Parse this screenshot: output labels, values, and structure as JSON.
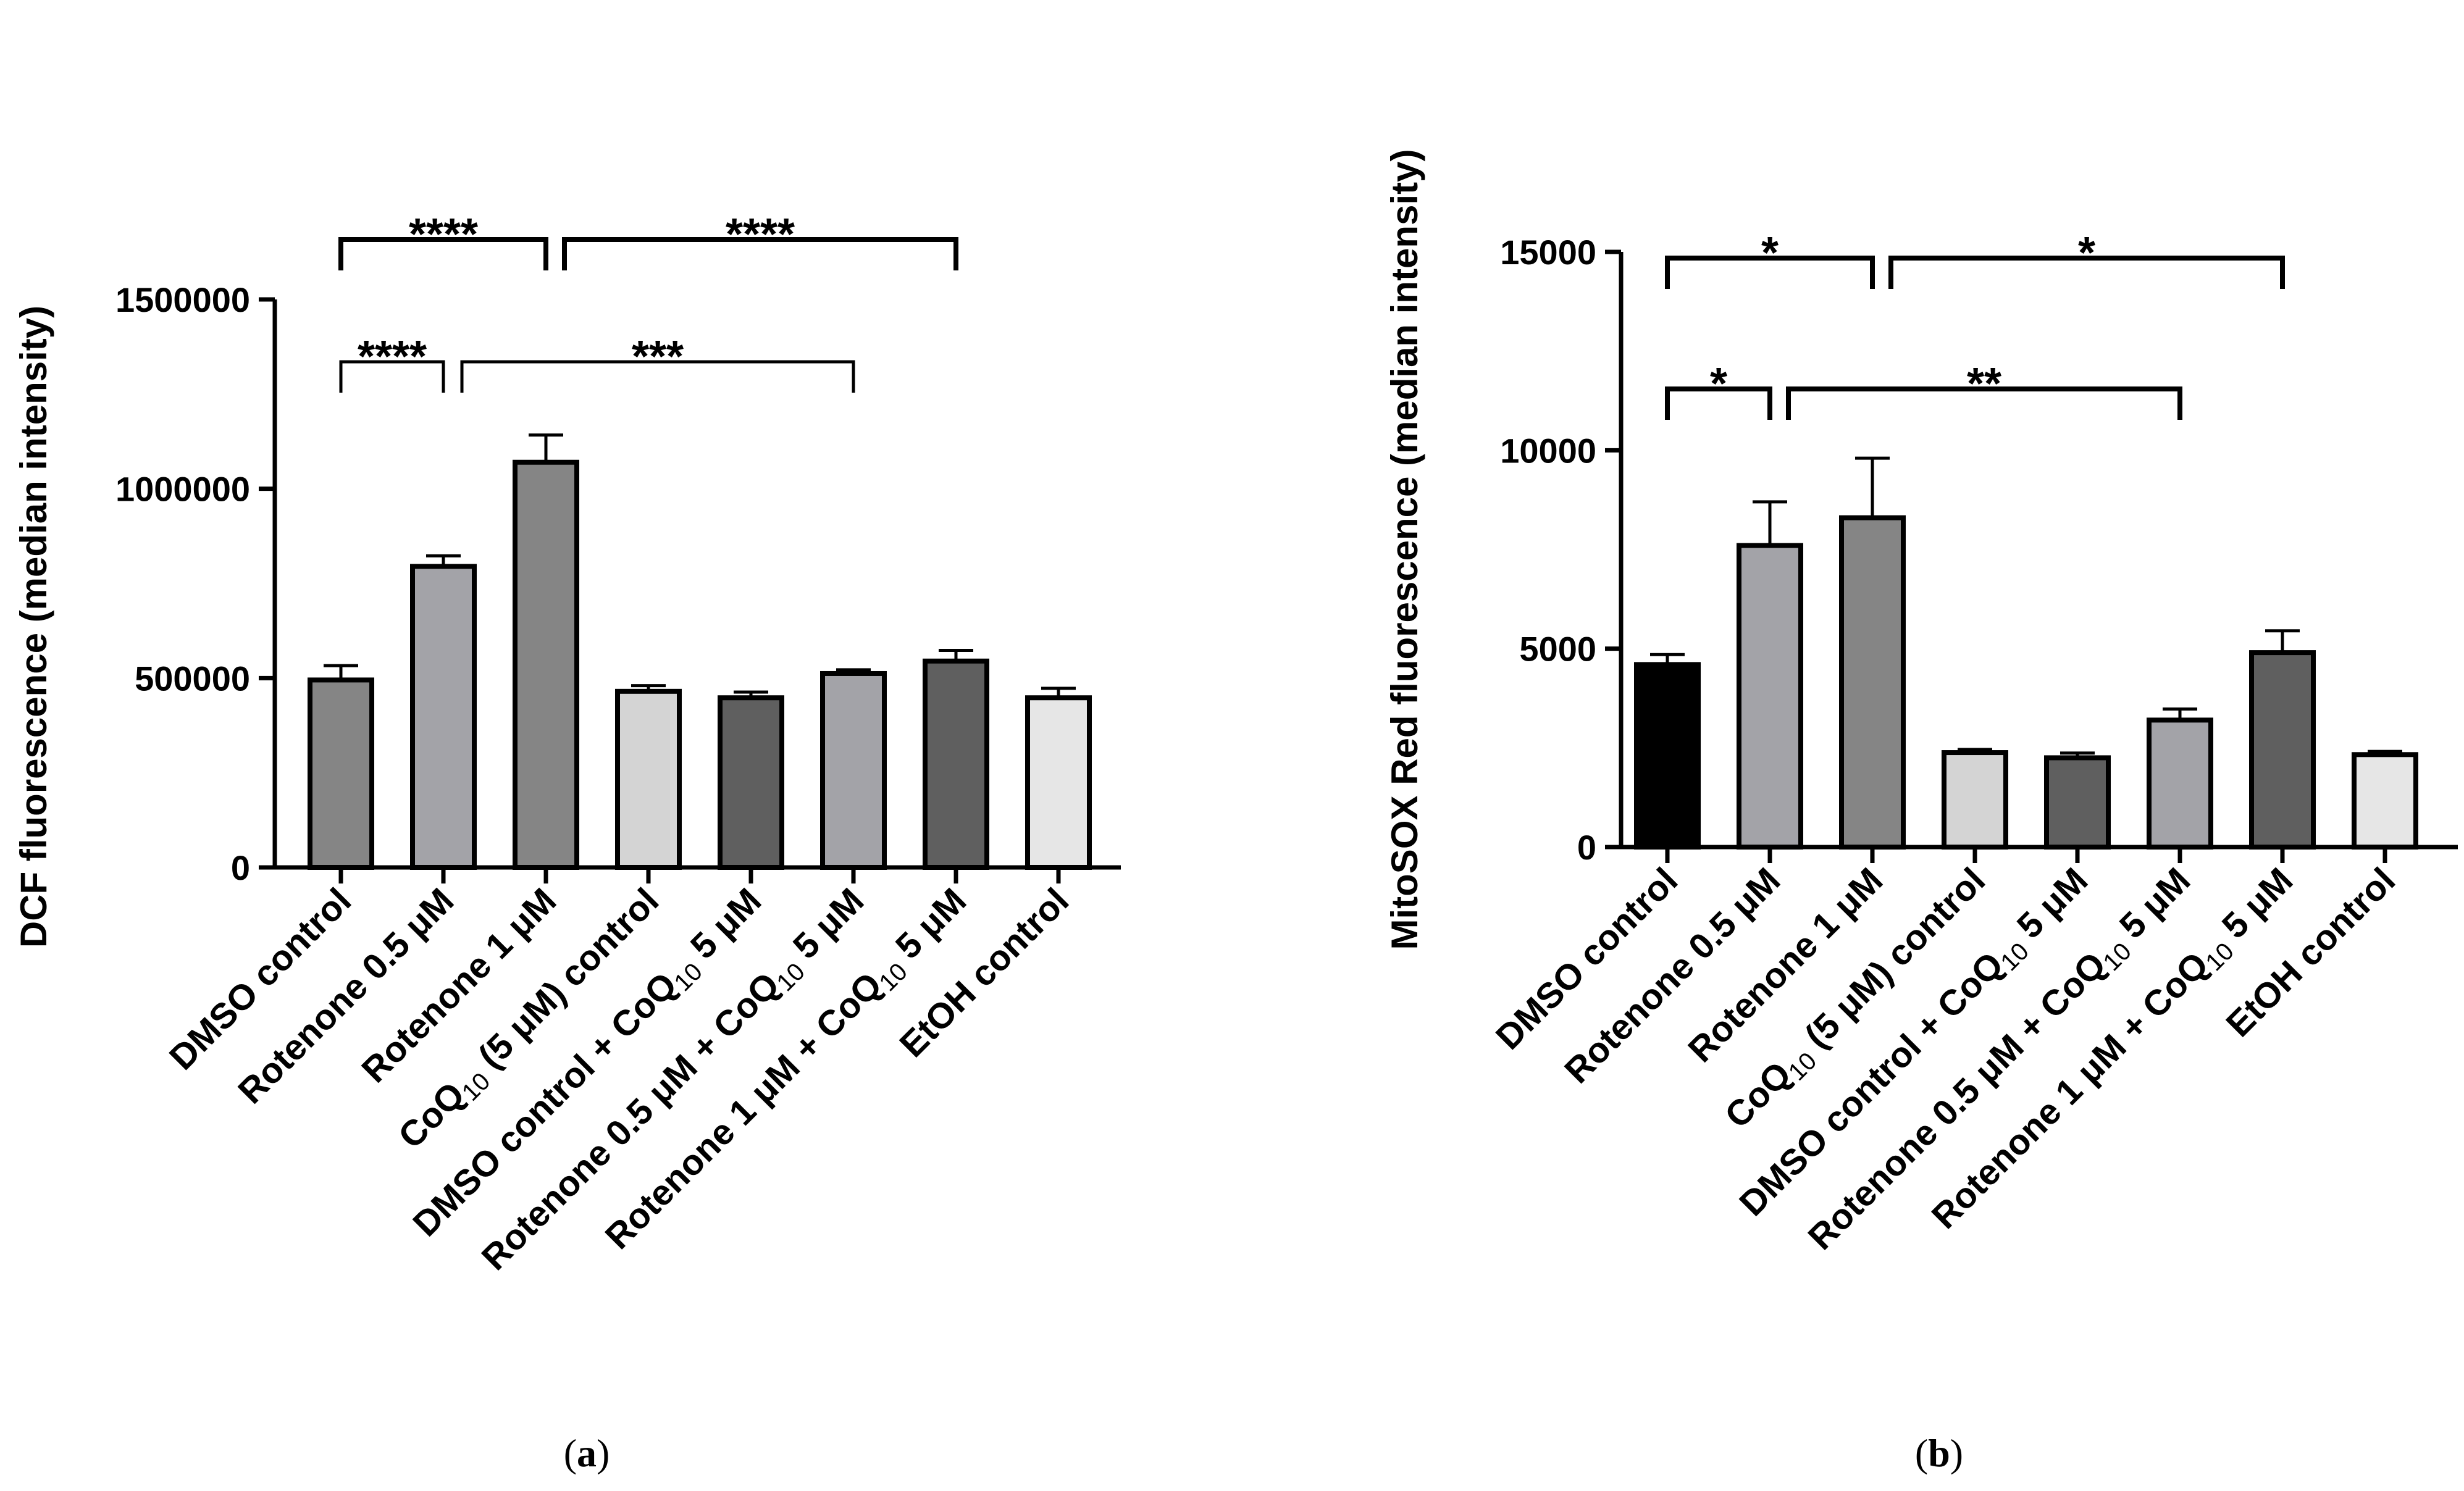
{
  "chart_data": [
    {
      "panel": "(a)",
      "panel_letter": "a",
      "type": "bar",
      "ylabel": "DCF fluorescence (median intensity)",
      "ylim": [
        0,
        1500000
      ],
      "yticks": [
        0,
        500000,
        1000000,
        1500000
      ],
      "ytick_labels": [
        "0",
        "500000",
        "1000000",
        "1500000"
      ],
      "categories": [
        {
          "label": "DMSO control"
        },
        {
          "label": "Rotenone 0.5 μM"
        },
        {
          "label": "Rotenone 1 μM"
        },
        {
          "label": "CoQ",
          "sub": "10",
          "suffix": " (5 μM) control"
        },
        {
          "label": "DMSO control + CoQ",
          "sub": "10",
          "suffix": " 5 μM"
        },
        {
          "label": "Rotenone 0.5 μM + CoQ",
          "sub": "10",
          "suffix": " 5 μM"
        },
        {
          "label": "Rotenone 1 μM + CoQ",
          "sub": "10",
          "suffix": " 5 μM"
        },
        {
          "label": "EtOH control"
        }
      ],
      "values": [
        495000,
        795000,
        1070000,
        465000,
        448000,
        512000,
        545000,
        448000
      ],
      "errors": [
        38000,
        28000,
        72000,
        15000,
        15000,
        10000,
        28000,
        25000
      ],
      "colors": [
        "#858585",
        "#a3a3a8",
        "#858585",
        "#d4d4d4",
        "#5f5f5f",
        "#a3a3a8",
        "#5f5f5f",
        "#e6e6e6"
      ],
      "significance": [
        {
          "from": 0,
          "to": 1,
          "label": "****",
          "level": 1,
          "thick": false
        },
        {
          "from": 1,
          "to": 5,
          "label": "***",
          "level": 1,
          "thick": false
        },
        {
          "from": 0,
          "to": 2,
          "label": "****",
          "level": 2,
          "thick": true
        },
        {
          "from": 2,
          "to": 6,
          "label": "****",
          "level": 2,
          "thick": true
        }
      ]
    },
    {
      "panel": "(b)",
      "panel_letter": "b",
      "type": "bar",
      "ylabel": "MitoSOX Red fluorescence (median intensity)",
      "ylim": [
        0,
        15000
      ],
      "yticks": [
        0,
        5000,
        10000,
        15000
      ],
      "ytick_labels": [
        "0",
        "5000",
        "10000",
        "15000"
      ],
      "categories": [
        {
          "label": "DMSO control"
        },
        {
          "label": "Rotenone 0.5 μM"
        },
        {
          "label": "Rotenone 1 μM"
        },
        {
          "label": "CoQ",
          "sub": "10",
          "suffix": " (5 μM) control"
        },
        {
          "label": "DMSO control + CoQ",
          "sub": "10",
          "suffix": " 5 μM"
        },
        {
          "label": "Rotenone 0.5 μM + CoQ",
          "sub": "10",
          "suffix": " 5 μM"
        },
        {
          "label": "Rotenone 1 μM + CoQ",
          "sub": "10",
          "suffix": " 5 μM"
        },
        {
          "label": "EtOH control"
        }
      ],
      "values": [
        4600,
        7600,
        8300,
        2380,
        2250,
        3200,
        4900,
        2330
      ],
      "errors": [
        250,
        1100,
        1500,
        80,
        120,
        280,
        550,
        80
      ],
      "colors": [
        "#000000",
        "#a3a3a8",
        "#858585",
        "#d4d4d4",
        "#5f5f5f",
        "#a3a3a8",
        "#5f5f5f",
        "#e6e6e6"
      ],
      "significance": [
        {
          "from": 0,
          "to": 1,
          "label": "*",
          "level": 1,
          "thick": true
        },
        {
          "from": 1,
          "to": 5,
          "label": "**",
          "level": 1,
          "thick": true
        },
        {
          "from": 0,
          "to": 2,
          "label": "*",
          "level": 2,
          "thick": true
        },
        {
          "from": 2,
          "to": 6,
          "label": "*",
          "level": 2,
          "thick": true
        }
      ]
    }
  ]
}
